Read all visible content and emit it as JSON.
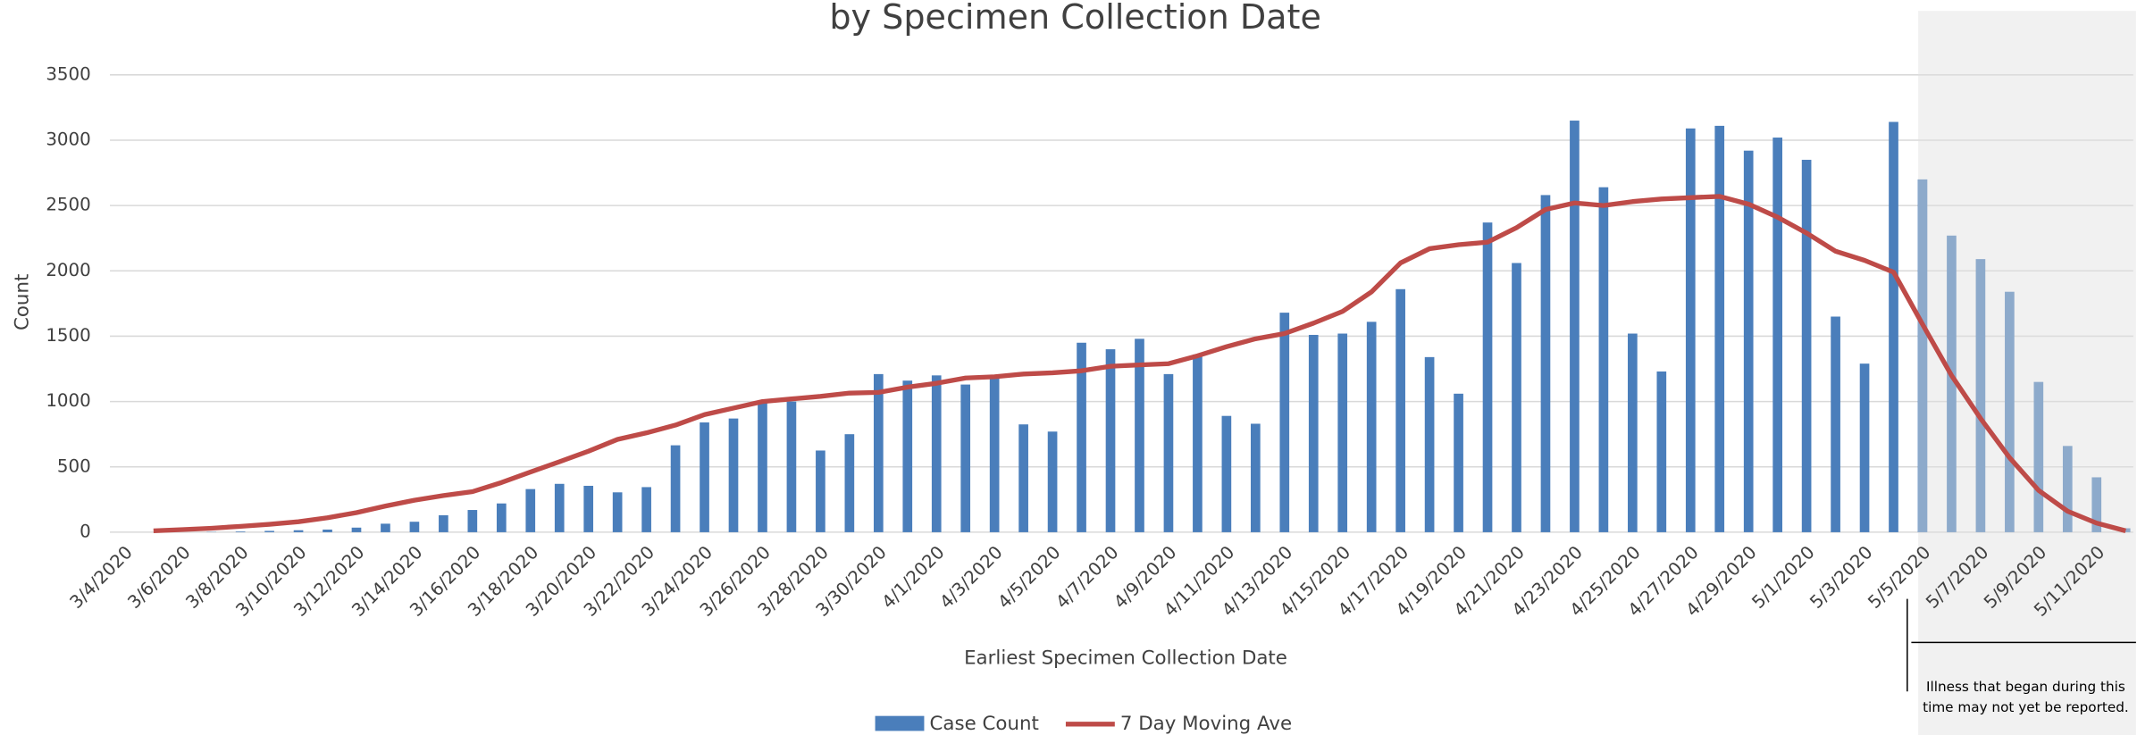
{
  "chart_data": {
    "type": "bar_line",
    "title": "by Specimen Collection Date",
    "x_label": "Earliest Specimen Collection Date",
    "y_label": "Count",
    "categories": [
      "3/4/2020",
      null,
      "3/6/2020",
      null,
      "3/8/2020",
      null,
      "3/10/2020",
      null,
      "3/12/2020",
      null,
      "3/14/2020",
      null,
      "3/16/2020",
      null,
      "3/18/2020",
      null,
      "3/20/2020",
      null,
      "3/22/2020",
      null,
      "3/24/2020",
      null,
      "3/26/2020",
      null,
      "3/28/2020",
      null,
      "3/30/2020",
      null,
      "4/1/2020",
      null,
      "4/3/2020",
      null,
      "4/5/2020",
      null,
      "4/7/2020",
      null,
      "4/9/2020",
      null,
      "4/11/2020",
      null,
      "4/13/2020",
      null,
      "4/15/2020",
      null,
      "4/17/2020",
      null,
      "4/19/2020",
      null,
      "4/21/2020",
      null,
      "4/23/2020",
      null,
      "4/25/2020",
      null,
      "4/27/2020",
      null,
      "4/29/2020",
      null,
      "5/1/2020",
      null,
      "5/3/2020",
      null,
      "5/5/2020",
      null,
      "5/7/2020",
      null,
      "5/9/2020",
      null,
      "5/11/2020",
      null
    ],
    "series": [
      {
        "name": "Case Count",
        "kind": "bar",
        "color": "#4a7ebb",
        "values": [
          0,
          0,
          0,
          2,
          5,
          10,
          15,
          20,
          35,
          65,
          80,
          130,
          170,
          220,
          330,
          370,
          355,
          305,
          345,
          665,
          840,
          870,
          990,
          1000,
          625,
          750,
          1210,
          1160,
          1200,
          1130,
          1180,
          825,
          770,
          1450,
          1400,
          1480,
          1210,
          1360,
          890,
          830,
          1680,
          1510,
          1520,
          1610,
          1860,
          1340,
          1060,
          2370,
          2060,
          2580,
          3150,
          2640,
          1520,
          1230,
          3090,
          3110,
          2920,
          3020,
          2850,
          1650,
          1290,
          3140,
          2700,
          2270,
          2090,
          1840,
          1150,
          660,
          420,
          30
        ]
      },
      {
        "name": "7 Day Moving Ave",
        "kind": "line",
        "color": "#be4b48",
        "values": [
          null,
          10,
          20,
          30,
          45,
          60,
          80,
          110,
          150,
          200,
          245,
          280,
          310,
          380,
          460,
          540,
          620,
          710,
          760,
          820,
          900,
          950,
          1000,
          1020,
          1040,
          1065,
          1070,
          1110,
          1140,
          1180,
          1190,
          1210,
          1220,
          1235,
          1270,
          1280,
          1290,
          1350,
          1420,
          1480,
          1520,
          1600,
          1690,
          1840,
          2060,
          2170,
          2200,
          2220,
          2330,
          2470,
          2520,
          2500,
          2530,
          2550,
          2560,
          2570,
          2510,
          2410,
          2290,
          2150,
          2080,
          1990,
          1590,
          1200,
          870,
          570,
          320,
          160,
          70,
          10
        ]
      }
    ],
    "ylim": [
      0,
      3500
    ],
    "yticks": [
      0,
      500,
      1000,
      1500,
      2000,
      2500,
      3000,
      3500
    ],
    "grid": true,
    "annotation": [
      "Illness that began during this",
      "time may not yet be reported."
    ]
  }
}
